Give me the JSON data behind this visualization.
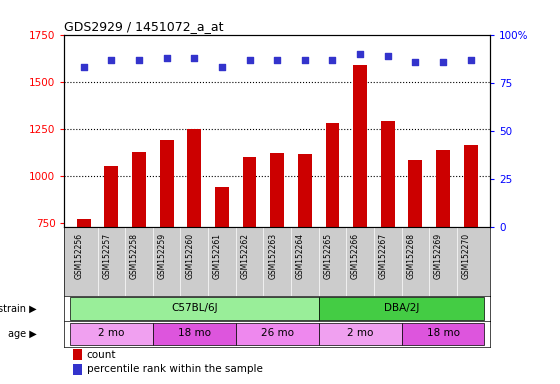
{
  "title": "GDS2929 / 1451072_a_at",
  "samples": [
    "GSM152256",
    "GSM152257",
    "GSM152258",
    "GSM152259",
    "GSM152260",
    "GSM152261",
    "GSM152262",
    "GSM152263",
    "GSM152264",
    "GSM152265",
    "GSM152266",
    "GSM152267",
    "GSM152268",
    "GSM152269",
    "GSM152270"
  ],
  "counts": [
    775,
    1055,
    1130,
    1190,
    1250,
    945,
    1100,
    1125,
    1120,
    1280,
    1590,
    1295,
    1085,
    1140,
    1165
  ],
  "percentile_ranks": [
    83,
    87,
    87,
    88,
    88,
    83,
    87,
    87,
    87,
    87,
    90,
    89,
    86,
    86,
    87
  ],
  "ylim_left": [
    730,
    1750
  ],
  "ylim_right": [
    0,
    100
  ],
  "yticks_left": [
    750,
    1000,
    1250,
    1500,
    1750
  ],
  "yticks_right": [
    0,
    25,
    50,
    75,
    100
  ],
  "bar_color": "#cc0000",
  "dot_color": "#3333cc",
  "bar_width": 0.5,
  "strain_groups": [
    {
      "label": "C57BL/6J",
      "start": 0,
      "end": 9,
      "color": "#99ee99"
    },
    {
      "label": "DBA/2J",
      "start": 9,
      "end": 15,
      "color": "#44cc44"
    }
  ],
  "age_groups": [
    {
      "label": "2 mo",
      "start": 0,
      "end": 3,
      "color": "#f0a0f0"
    },
    {
      "label": "18 mo",
      "start": 3,
      "end": 6,
      "color": "#dd55dd"
    },
    {
      "label": "26 mo",
      "start": 6,
      "end": 9,
      "color": "#ee88ee"
    },
    {
      "label": "2 mo",
      "start": 9,
      "end": 12,
      "color": "#f0a0f0"
    },
    {
      "label": "18 mo",
      "start": 12,
      "end": 15,
      "color": "#dd55dd"
    }
  ],
  "strain_label": "strain",
  "age_label": "age",
  "legend_count_label": "count",
  "legend_pct_label": "percentile rank within the sample",
  "background_color": "#ffffff",
  "xticklabel_bg": "#cccccc"
}
